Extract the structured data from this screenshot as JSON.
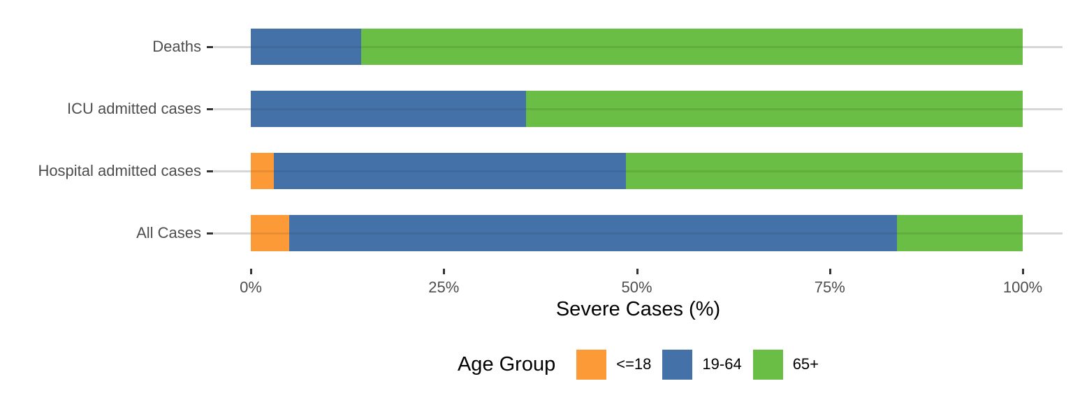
{
  "chart_data": {
    "type": "bar",
    "orientation": "horizontal",
    "stacked": true,
    "percent_scale": true,
    "title": "",
    "xlabel": "Severe Cases (%)",
    "ylabel": "",
    "categories": [
      "Deaths",
      "ICU admitted cases",
      "Hospital admitted cases",
      "All Cases"
    ],
    "series": [
      {
        "name": "<=18",
        "color": "#FD9A38",
        "values": [
          0.0,
          0.0,
          3.0,
          5.0
        ]
      },
      {
        "name": "19-64",
        "color": "#4472A8",
        "values": [
          14.3,
          35.7,
          45.6,
          78.7
        ]
      },
      {
        "name": "65+",
        "color": "#6ABD45",
        "values": [
          85.7,
          64.3,
          51.4,
          16.3
        ]
      }
    ],
    "xlim": [
      0,
      100
    ],
    "x_tick_values": [
      0,
      25,
      50,
      75,
      100
    ],
    "x_tick_labels": [
      "0%",
      "25%",
      "50%",
      "75%",
      "100%"
    ],
    "grid": "horizontal-major-only",
    "legend_position": "bottom",
    "legend_title": "Age Group"
  },
  "style_colors": {
    "background": "#FFFFFF",
    "gridline": "#D7D7D7",
    "tick": "#333333",
    "axis_text": "#4D4D4D",
    "title_text": "#000000"
  }
}
